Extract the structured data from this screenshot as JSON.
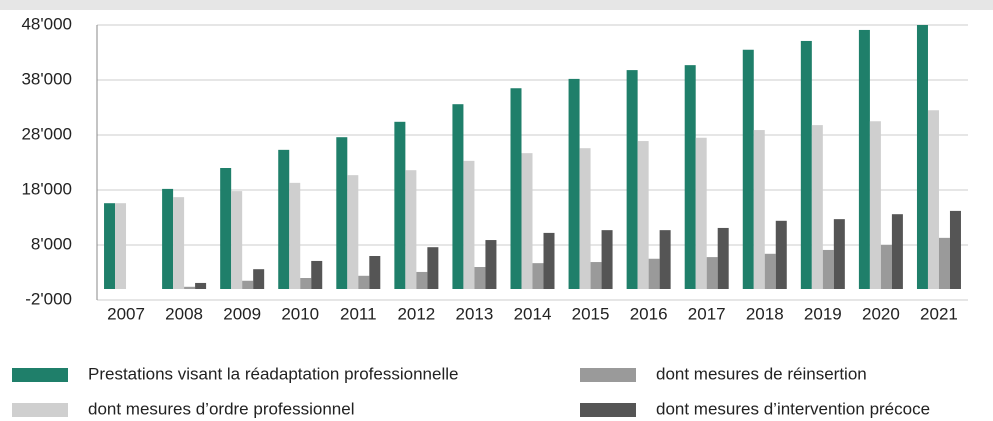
{
  "chart_data": {
    "type": "bar",
    "categories": [
      "2007",
      "2008",
      "2009",
      "2010",
      "2011",
      "2012",
      "2013",
      "2014",
      "2015",
      "2016",
      "2017",
      "2018",
      "2019",
      "2020",
      "2021"
    ],
    "series": [
      {
        "name": "Prestations visant la réadaptation professionnelle",
        "color": "#1f7f6a",
        "values": [
          15600,
          18200,
          22000,
          25300,
          27600,
          30400,
          33600,
          36500,
          38200,
          39800,
          40700,
          43500,
          45100,
          47100,
          48000
        ]
      },
      {
        "name": "dont mesures d’ordre professionnel",
        "color": "#cfcfcf",
        "values": [
          15600,
          16700,
          17800,
          19300,
          20700,
          21600,
          23300,
          24700,
          25600,
          26900,
          27500,
          28900,
          29800,
          30500,
          32500
        ]
      },
      {
        "name": "dont mesures de réinsertion",
        "color": "#9a9a9a",
        "values": [
          null,
          400,
          1500,
          2000,
          2400,
          3100,
          4000,
          4700,
          4900,
          5500,
          5800,
          6400,
          7100,
          8000,
          9300
        ]
      },
      {
        "name": "dont mesures d’intervention précoce",
        "color": "#555555",
        "values": [
          null,
          1100,
          3600,
          5100,
          6000,
          7600,
          8900,
          10200,
          10700,
          10700,
          11100,
          12400,
          12700,
          13600,
          14200
        ]
      }
    ],
    "ylim": [
      -2000,
      48000
    ],
    "yticks": [
      {
        "value": -2000,
        "label": "-2'000"
      },
      {
        "value": 8000,
        "label": "8'000"
      },
      {
        "value": 18000,
        "label": "18'000"
      },
      {
        "value": 28000,
        "label": "28'000"
      },
      {
        "value": 38000,
        "label": "38'000"
      },
      {
        "value": 48000,
        "label": "48'000"
      }
    ],
    "grid": true
  }
}
